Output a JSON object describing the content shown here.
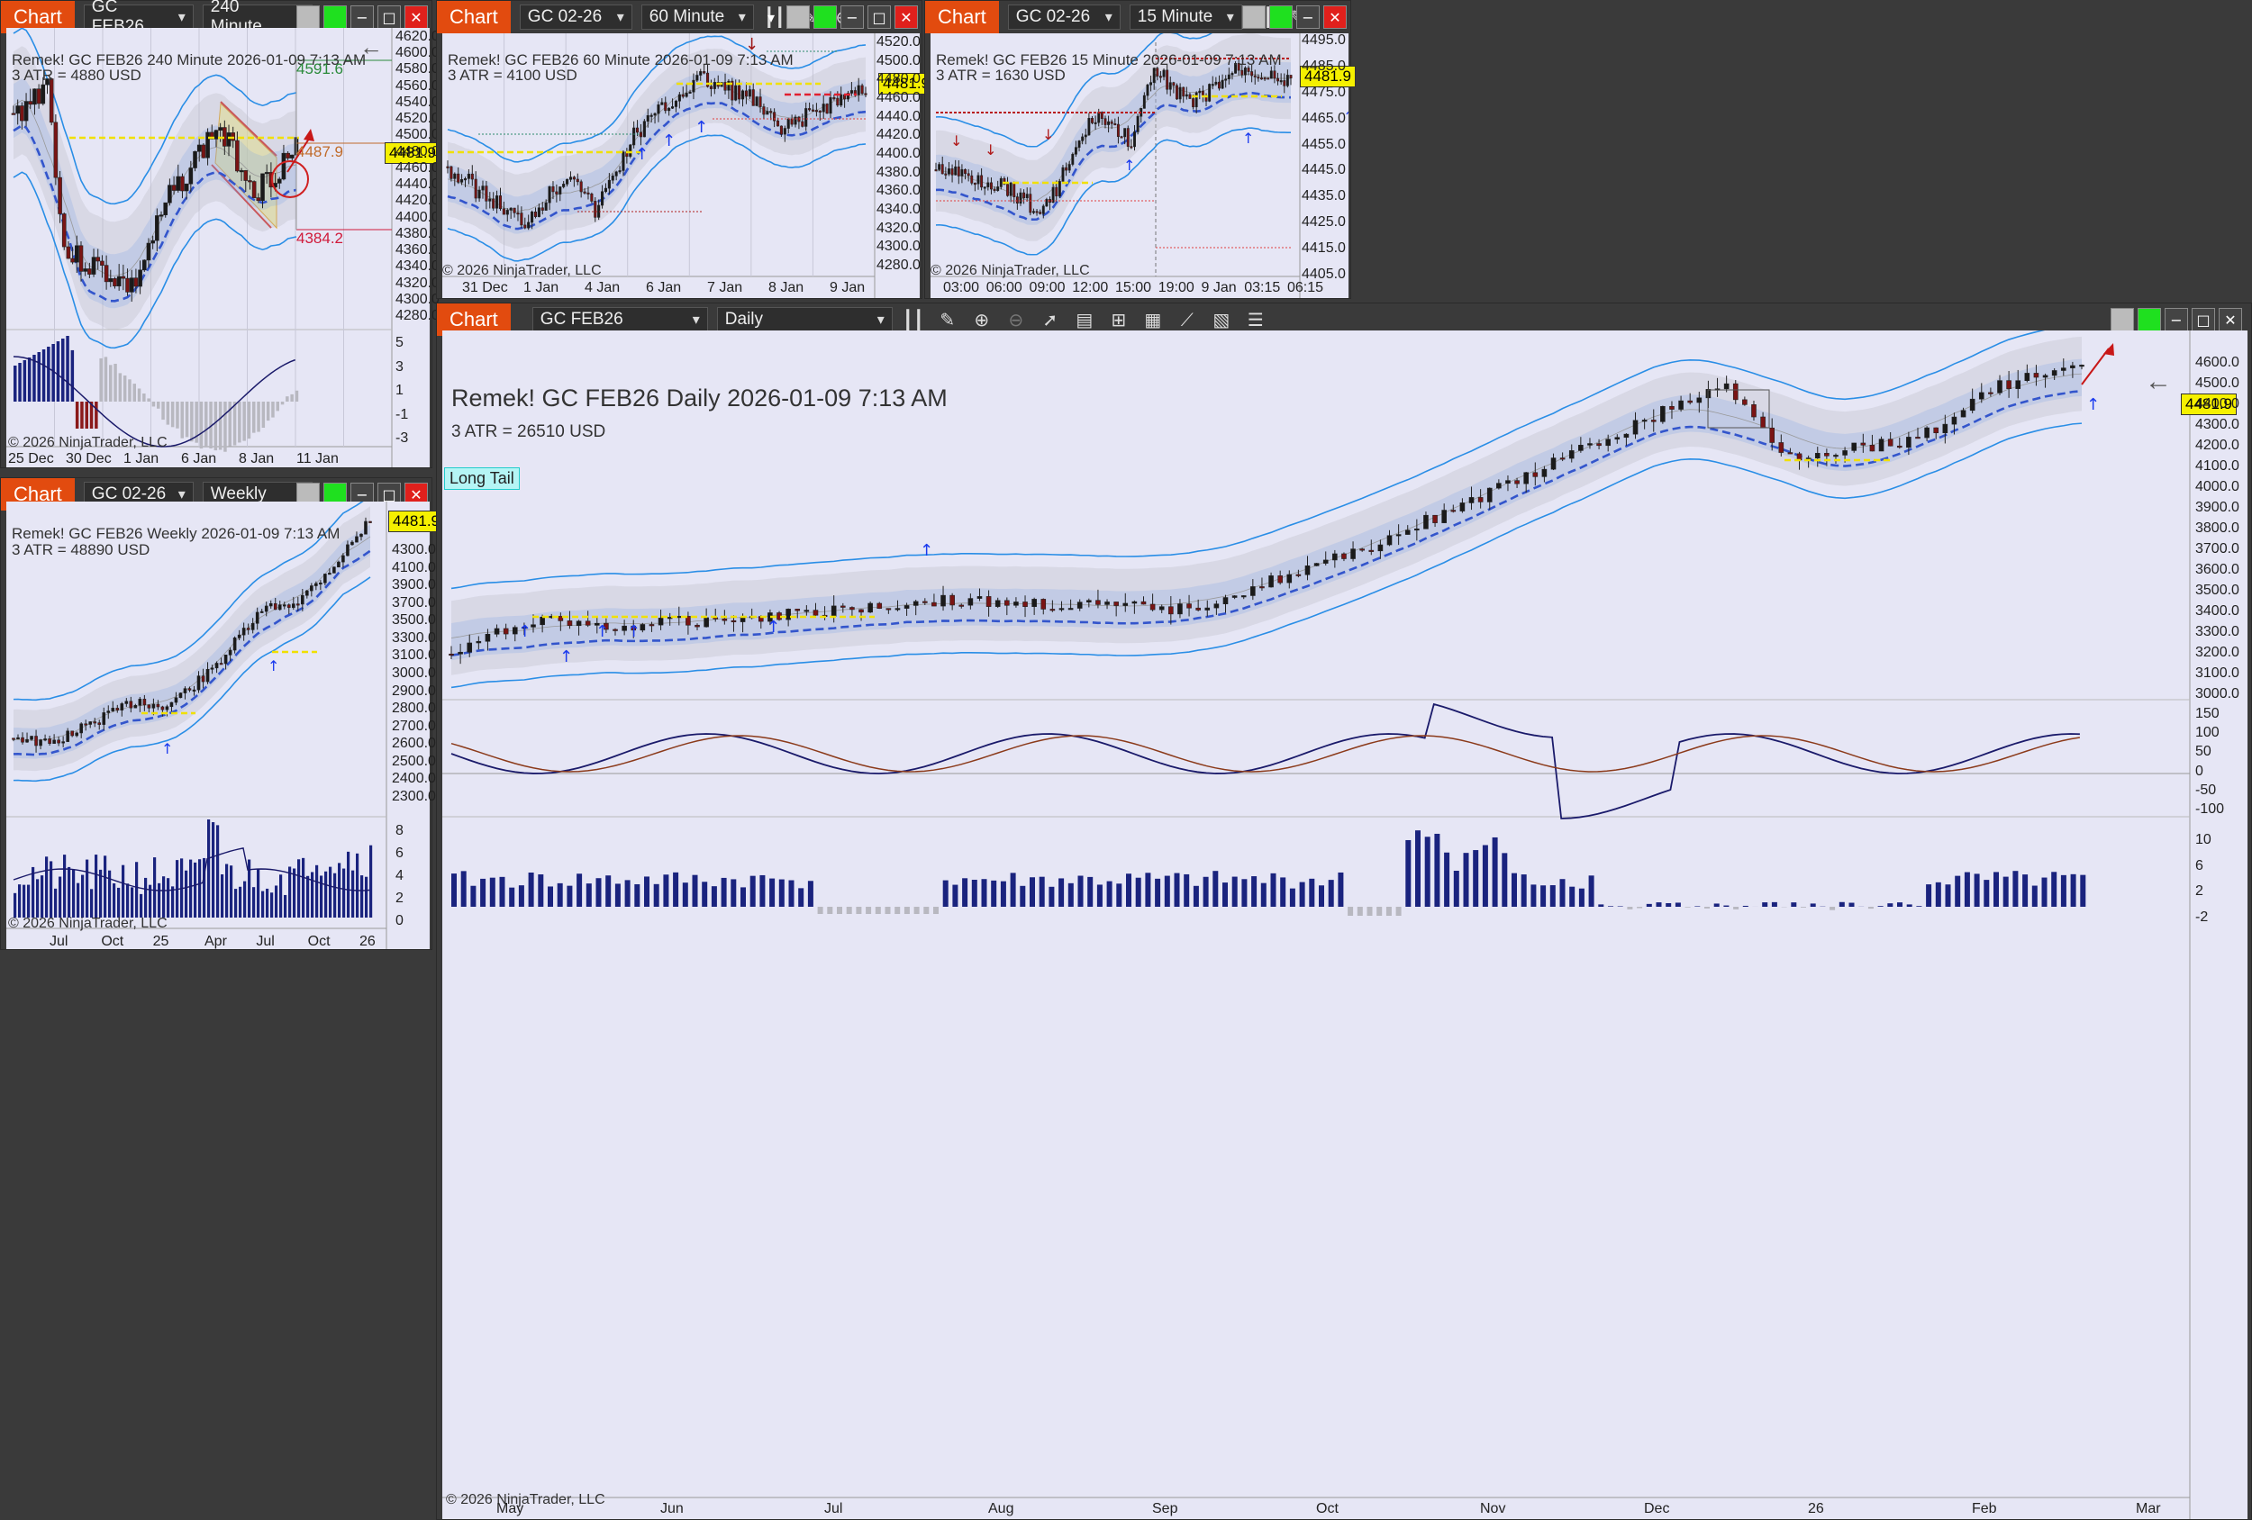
{
  "chart_tab_label": "Chart",
  "windows": {
    "w240": {
      "symbol": "GC FEB26",
      "interval": "240 Minute",
      "header": "Remek!  GC FEB26  240 Minute  2026-01-09 7:13 AM",
      "atr": "3 ATR = 4880 USD",
      "last": "4481.9",
      "target_up": "4591.6",
      "mid": "4487.9",
      "target_down": "4384.2",
      "yticks": [
        "4620.0",
        "4600.0",
        "4580.0",
        "4560.0",
        "4540.0",
        "4520.0",
        "4500.0",
        "4480.0",
        "4460.0",
        "4440.0",
        "4420.0",
        "4400.0",
        "4380.0",
        "4360.0",
        "4340.0",
        "4320.0",
        "4300.0",
        "4280.0"
      ],
      "ind_ticks": [
        "5",
        "3",
        "1",
        "-1",
        "-3"
      ],
      "xticks": [
        "25 Dec",
        "30 Dec",
        "1 Jan",
        "6 Jan",
        "8 Jan",
        "11 Jan"
      ],
      "copyright": "© 2026 NinjaTrader, LLC"
    },
    "w60": {
      "symbol": "GC 02-26",
      "interval": "60 Minute",
      "header": "Remek!  GC FEB26  60 Minute  2026-01-09 7:13 AM",
      "atr": "3 ATR = 4100 USD",
      "last": "4481.9",
      "yticks": [
        "4520.0",
        "4500.0",
        "4480.0",
        "4460.0",
        "4440.0",
        "4420.0",
        "4400.0",
        "4380.0",
        "4360.0",
        "4340.0",
        "4320.0",
        "4300.0",
        "4280.0"
      ],
      "xticks": [
        "31 Dec",
        "1 Jan",
        "4 Jan",
        "6 Jan",
        "7 Jan",
        "8 Jan",
        "9 Jan"
      ],
      "copyright": "© 2026 NinjaTrader, LLC"
    },
    "w15": {
      "symbol": "GC 02-26",
      "interval": "15 Minute",
      "header": "Remek!  GC FEB26  15 Minute  2026-01-09 7:13 AM",
      "atr": "3 ATR = 1630 USD",
      "last": "4481.9",
      "yticks": [
        "4495.0",
        "4485.0",
        "4475.0",
        "4465.0",
        "4455.0",
        "4445.0",
        "4435.0",
        "4425.0",
        "4415.0",
        "4405.0"
      ],
      "xticks": [
        "03:00",
        "06:00",
        "09:00",
        "12:00",
        "15:00",
        "19:00",
        "9 Jan",
        "03:15",
        "06:15"
      ],
      "copyright": "© 2026 NinjaTrader, LLC"
    },
    "wweek": {
      "symbol": "GC 02-26",
      "interval": "Weekly",
      "header": "Remek!  GC FEB26  Weekly  2026-01-09 7:13 AM",
      "atr": "3 ATR = 48890 USD",
      "last": "4481.9",
      "yticks": [
        "4300.0",
        "4100.0",
        "3900.0",
        "3700.0",
        "3500.0",
        "3300.0",
        "3100.0",
        "3000.0",
        "2900.0",
        "2800.0",
        "2700.0",
        "2600.0",
        "2500.0",
        "2400.0",
        "2300.0"
      ],
      "ind_ticks": [
        "8",
        "6",
        "4",
        "2",
        "0"
      ],
      "xticks": [
        "Jul",
        "Oct",
        "25",
        "Apr",
        "Jul",
        "Oct",
        "26"
      ],
      "copyright": "© 2026 NinjaTrader, LLC"
    },
    "wday": {
      "symbol": "GC FEB26",
      "interval": "Daily",
      "header": "Remek!  GC FEB26  Daily  2026-01-09 7:13 AM",
      "atr": "3 ATR = 26510 USD",
      "last": "4481.9",
      "badge": "Long Tail",
      "yticks": [
        "4600.0",
        "4500.0",
        "4400.0",
        "4300.0",
        "4200.0",
        "4100.0",
        "4000.0",
        "3900.0",
        "3800.0",
        "3700.0",
        "3600.0",
        "3500.0",
        "3400.0",
        "3300.0",
        "3200.0",
        "3100.0",
        "3000.0"
      ],
      "osc_ticks": [
        "150",
        "100",
        "50",
        "0",
        "-50",
        "-100"
      ],
      "vol_ticks": [
        "10",
        "6",
        "2",
        "-2"
      ],
      "xticks": [
        "May",
        "Jun",
        "Jul",
        "Aug",
        "Sep",
        "Oct",
        "Nov",
        "Dec",
        "26",
        "Feb",
        "Mar"
      ],
      "copyright": "© 2026 NinjaTrader, LLC"
    }
  },
  "colors": {
    "tab": "#e24b0f",
    "band": "#2a8ee6",
    "trail": "#3355cc",
    "bull": "#1a1a1a",
    "bear": "#8b1a1a",
    "bg": "#e6e6f5",
    "hist": "#1a237e"
  }
}
